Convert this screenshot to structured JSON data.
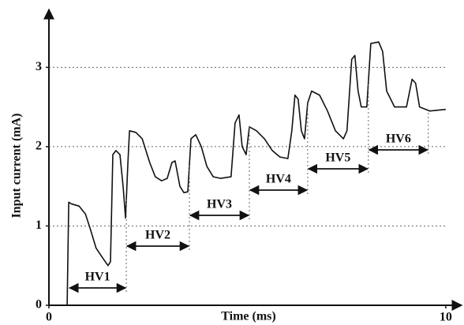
{
  "chart_data": {
    "type": "line",
    "x_label": "Time (ms)",
    "y_label": "Input current (mA)",
    "xlim": [
      0,
      10.3
    ],
    "ylim": [
      0,
      3.7
    ],
    "xticks": [
      0,
      10
    ],
    "yticks": [
      0,
      1,
      2,
      3
    ],
    "grid": true,
    "series": [
      {
        "name": "Input current",
        "color": "#111111",
        "x": [
          0,
          0.46,
          0.5,
          0.56,
          0.76,
          0.92,
          1.05,
          1.19,
          1.35,
          1.49,
          1.55,
          1.61,
          1.69,
          1.79,
          1.87,
          1.93,
          1.99,
          2.03,
          2.19,
          2.35,
          2.54,
          2.68,
          2.84,
          2.98,
          3.1,
          3.18,
          3.3,
          3.4,
          3.5,
          3.58,
          3.7,
          3.84,
          3.98,
          4.14,
          4.33,
          4.59,
          4.69,
          4.79,
          4.87,
          4.97,
          5.05,
          5.23,
          5.43,
          5.63,
          5.82,
          6.02,
          6.12,
          6.2,
          6.28,
          6.36,
          6.44,
          6.52,
          6.62,
          6.82,
          7.02,
          7.22,
          7.42,
          7.51,
          7.63,
          7.71,
          7.79,
          7.87,
          8.01,
          8.11,
          8.31,
          8.41,
          8.51,
          8.71,
          9.01,
          9.15,
          9.24,
          9.34,
          9.6,
          10.0
        ],
        "values": [
          0,
          0,
          1.3,
          1.28,
          1.25,
          1.15,
          0.95,
          0.72,
          0.6,
          0.5,
          0.55,
          1.9,
          1.95,
          1.9,
          1.5,
          1.1,
          1.8,
          2.2,
          2.18,
          2.1,
          1.8,
          1.62,
          1.57,
          1.6,
          1.8,
          1.82,
          1.5,
          1.42,
          1.43,
          2.1,
          2.15,
          2.0,
          1.75,
          1.62,
          1.6,
          1.62,
          2.3,
          2.4,
          2.0,
          1.9,
          2.25,
          2.2,
          2.1,
          1.95,
          1.87,
          1.85,
          2.2,
          2.65,
          2.6,
          2.2,
          2.1,
          2.55,
          2.7,
          2.65,
          2.45,
          2.2,
          2.1,
          2.2,
          3.1,
          3.15,
          2.7,
          2.5,
          2.5,
          3.3,
          3.32,
          3.2,
          2.7,
          2.5,
          2.5,
          2.85,
          2.8,
          2.5,
          2.45,
          2.47
        ]
      }
    ],
    "intervals": [
      {
        "label": "HV1",
        "start": 0.5,
        "end": 1.95
      },
      {
        "label": "HV2",
        "start": 1.95,
        "end": 3.54
      },
      {
        "label": "HV3",
        "start": 3.54,
        "end": 5.05
      },
      {
        "label": "HV4",
        "start": 5.05,
        "end": 6.52
      },
      {
        "label": "HV5",
        "start": 6.52,
        "end": 8.05
      },
      {
        "label": "HV6",
        "start": 8.05,
        "end": 9.56
      }
    ]
  }
}
